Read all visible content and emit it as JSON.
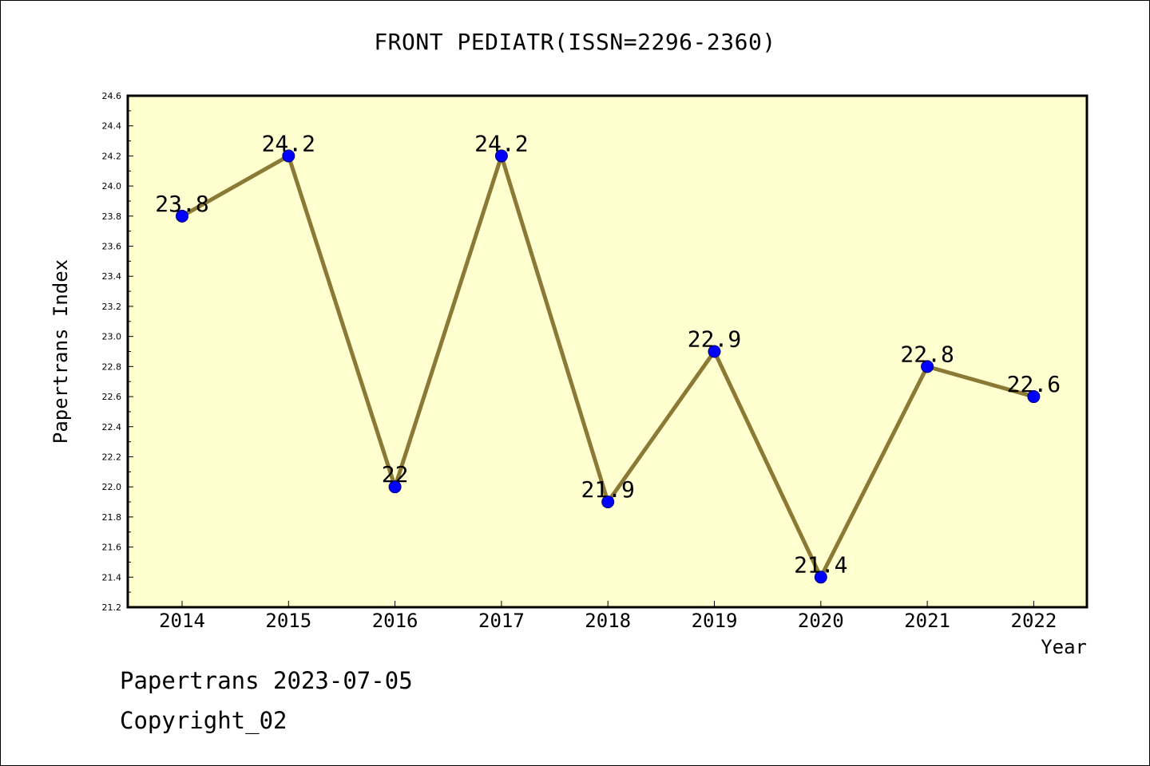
{
  "colors": {
    "plot_background": "#ffffd0",
    "line": "#8b7a35",
    "marker": "#0000ff",
    "marker_edge": "#00007a"
  },
  "footer": {
    "date_line": "Papertrans 2023-07-05",
    "copyright_line": "Copyright_02"
  },
  "chart_data": {
    "type": "line",
    "title": "FRONT PEDIATR(ISSN=2296-2360)",
    "xlabel": "Year",
    "ylabel": "Papertrans Index",
    "categories": [
      "2014",
      "2015",
      "2016",
      "2017",
      "2018",
      "2019",
      "2020",
      "2021",
      "2022"
    ],
    "series": [
      {
        "values": [
          23.8,
          24.2,
          22.0,
          24.2,
          21.9,
          22.9,
          21.4,
          22.8,
          22.6
        ],
        "labels": [
          "23.8",
          "24.2",
          "22",
          "24.2",
          "21.9",
          "22.9",
          "21.4",
          "22.8",
          "22.6"
        ]
      }
    ],
    "ylim": [
      21.2,
      24.6
    ],
    "yticks": [
      "21.2",
      "21.4",
      "21.6",
      "21.8",
      "22.0",
      "22.2",
      "22.4",
      "22.6",
      "22.8",
      "23.0",
      "23.2",
      "23.4",
      "23.6",
      "23.8",
      "24.0",
      "24.2",
      "24.4",
      "24.6"
    ],
    "grid": false,
    "legend": "none"
  }
}
